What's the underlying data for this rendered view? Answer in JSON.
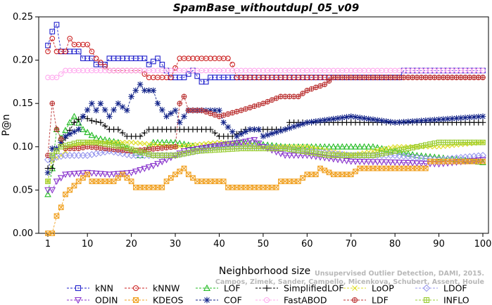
{
  "chart_data": {
    "type": "line",
    "title": "SpamBase_withoutdupl_05_v09",
    "xlabel": "Neighborhood size",
    "ylabel": "P@n",
    "xlim": [
      1,
      100
    ],
    "ylim": [
      0,
      0.25
    ],
    "x_ticks": [
      1,
      10,
      20,
      30,
      40,
      50,
      60,
      70,
      80,
      90,
      100
    ],
    "y_ticks": [
      "0.00",
      "0.05",
      "0.10",
      "0.15",
      "0.20",
      "0.25"
    ],
    "grid": false,
    "legend_position": "bottom",
    "credit": "Campos, Zimek, Sander, Campello, Micenkova, Schubert, Assent, Houle",
    "credit_line1": "Unsupervised Outlier Detection, DAMI, 2015.",
    "series": [
      {
        "name": "kNN",
        "color": "#2222cc",
        "marker": "square",
        "knots": [
          [
            1,
            0.217
          ],
          [
            2,
            0.233
          ],
          [
            3,
            0.241
          ],
          [
            4,
            0.21
          ],
          [
            6,
            0.21
          ],
          [
            8,
            0.21
          ],
          [
            9,
            0.202
          ],
          [
            11,
            0.202
          ],
          [
            12,
            0.195
          ],
          [
            14,
            0.195
          ],
          [
            15,
            0.202
          ],
          [
            23,
            0.202
          ],
          [
            24,
            0.195
          ],
          [
            26,
            0.202
          ],
          [
            28,
            0.188
          ],
          [
            29,
            0.18
          ],
          [
            32,
            0.18
          ],
          [
            34,
            0.188
          ],
          [
            36,
            0.175
          ],
          [
            37,
            0.175
          ],
          [
            38,
            0.18
          ],
          [
            81,
            0.18
          ],
          [
            82,
            0.188
          ],
          [
            100,
            0.188
          ]
        ]
      },
      {
        "name": "kNNW",
        "color": "#cc2222",
        "marker": "circle",
        "knots": [
          [
            1,
            0.21
          ],
          [
            2,
            0.225
          ],
          [
            3,
            0.21
          ],
          [
            5,
            0.21
          ],
          [
            6,
            0.225
          ],
          [
            7,
            0.218
          ],
          [
            10,
            0.218
          ],
          [
            11,
            0.21
          ],
          [
            12,
            0.202
          ],
          [
            15,
            0.188
          ],
          [
            22,
            0.188
          ],
          [
            24,
            0.18
          ],
          [
            29,
            0.18
          ],
          [
            31,
            0.202
          ],
          [
            42,
            0.202
          ],
          [
            43,
            0.195
          ],
          [
            44,
            0.18
          ],
          [
            100,
            0.18
          ]
        ]
      },
      {
        "name": "LOF",
        "color": "#22bb22",
        "marker": "triangle",
        "knots": [
          [
            1,
            0.045
          ],
          [
            2,
            0.075
          ],
          [
            3,
            0.12
          ],
          [
            4,
            0.11
          ],
          [
            6,
            0.128
          ],
          [
            7,
            0.135
          ],
          [
            9,
            0.12
          ],
          [
            12,
            0.11
          ],
          [
            17,
            0.105
          ],
          [
            22,
            0.09
          ],
          [
            25,
            0.105
          ],
          [
            30,
            0.105
          ],
          [
            35,
            0.1
          ],
          [
            45,
            0.105
          ],
          [
            55,
            0.1
          ],
          [
            65,
            0.1
          ],
          [
            75,
            0.1
          ],
          [
            85,
            0.09
          ],
          [
            95,
            0.085
          ],
          [
            100,
            0.082
          ]
        ]
      },
      {
        "name": "SimplifiedLOF",
        "color": "#000000",
        "marker": "plus",
        "knots": [
          [
            1,
            0.075
          ],
          [
            2,
            0.075
          ],
          [
            3,
            0.095
          ],
          [
            5,
            0.11
          ],
          [
            7,
            0.128
          ],
          [
            9,
            0.135
          ],
          [
            11,
            0.13
          ],
          [
            13,
            0.128
          ],
          [
            15,
            0.12
          ],
          [
            17,
            0.12
          ],
          [
            19,
            0.112
          ],
          [
            22,
            0.112
          ],
          [
            24,
            0.12
          ],
          [
            38,
            0.12
          ],
          [
            40,
            0.112
          ],
          [
            43,
            0.112
          ],
          [
            46,
            0.12
          ],
          [
            55,
            0.12
          ],
          [
            56,
            0.128
          ],
          [
            100,
            0.128
          ]
        ]
      },
      {
        "name": "LoOP",
        "color": "#dddd22",
        "marker": "x",
        "knots": [
          [
            1,
            0.06
          ],
          [
            2,
            0.085
          ],
          [
            4,
            0.09
          ],
          [
            6,
            0.1
          ],
          [
            10,
            0.105
          ],
          [
            20,
            0.105
          ],
          [
            30,
            0.1
          ],
          [
            40,
            0.105
          ],
          [
            50,
            0.1
          ],
          [
            60,
            0.1
          ],
          [
            70,
            0.09
          ],
          [
            80,
            0.1
          ],
          [
            90,
            0.1
          ],
          [
            100,
            0.105
          ]
        ]
      },
      {
        "name": "LDOF",
        "color": "#9999ee",
        "marker": "diamond",
        "knots": [
          [
            1,
            0.085
          ],
          [
            3,
            0.088
          ],
          [
            5,
            0.09
          ],
          [
            10,
            0.09
          ],
          [
            15,
            0.095
          ],
          [
            20,
            0.09
          ],
          [
            30,
            0.09
          ],
          [
            40,
            0.1
          ],
          [
            50,
            0.1
          ],
          [
            60,
            0.095
          ],
          [
            70,
            0.09
          ],
          [
            80,
            0.09
          ],
          [
            90,
            0.085
          ],
          [
            100,
            0.09
          ]
        ]
      },
      {
        "name": "ODIN",
        "color": "#8833cc",
        "marker": "triangle-down",
        "knots": [
          [
            1,
            0.05
          ],
          [
            2,
            0.05
          ],
          [
            3,
            0.06
          ],
          [
            5,
            0.068
          ],
          [
            10,
            0.07
          ],
          [
            15,
            0.068
          ],
          [
            20,
            0.07
          ],
          [
            25,
            0.078
          ],
          [
            28,
            0.085
          ],
          [
            32,
            0.095
          ],
          [
            38,
            0.1
          ],
          [
            45,
            0.105
          ],
          [
            48,
            0.108
          ],
          [
            50,
            0.1
          ],
          [
            55,
            0.09
          ],
          [
            60,
            0.09
          ],
          [
            70,
            0.083
          ],
          [
            80,
            0.082
          ],
          [
            90,
            0.08
          ],
          [
            100,
            0.085
          ]
        ]
      },
      {
        "name": "KDEOS",
        "color": "#f0a020",
        "marker": "square-x",
        "knots": [
          [
            1,
            0.0
          ],
          [
            2,
            0.0
          ],
          [
            3,
            0.02
          ],
          [
            4,
            0.03
          ],
          [
            5,
            0.045
          ],
          [
            8,
            0.06
          ],
          [
            10,
            0.068
          ],
          [
            11,
            0.06
          ],
          [
            16,
            0.06
          ],
          [
            18,
            0.068
          ],
          [
            20,
            0.06
          ],
          [
            21,
            0.053
          ],
          [
            27,
            0.053
          ],
          [
            28,
            0.06
          ],
          [
            30,
            0.068
          ],
          [
            32,
            0.075
          ],
          [
            33,
            0.068
          ],
          [
            35,
            0.06
          ],
          [
            41,
            0.06
          ],
          [
            42,
            0.053
          ],
          [
            53,
            0.053
          ],
          [
            54,
            0.06
          ],
          [
            58,
            0.06
          ],
          [
            60,
            0.068
          ],
          [
            62,
            0.068
          ],
          [
            63,
            0.075
          ],
          [
            66,
            0.068
          ],
          [
            70,
            0.068
          ],
          [
            72,
            0.075
          ],
          [
            87,
            0.075
          ],
          [
            88,
            0.083
          ],
          [
            100,
            0.083
          ]
        ]
      },
      {
        "name": "COF",
        "color": "#112288",
        "marker": "asterisk",
        "knots": [
          [
            1,
            0.07
          ],
          [
            2,
            0.098
          ],
          [
            3,
            0.098
          ],
          [
            5,
            0.112
          ],
          [
            8,
            0.12
          ],
          [
            9,
            0.135
          ],
          [
            11,
            0.15
          ],
          [
            12,
            0.142
          ],
          [
            13,
            0.15
          ],
          [
            15,
            0.135
          ],
          [
            17,
            0.15
          ],
          [
            19,
            0.142
          ],
          [
            20,
            0.158
          ],
          [
            22,
            0.172
          ],
          [
            23,
            0.165
          ],
          [
            25,
            0.165
          ],
          [
            26,
            0.15
          ],
          [
            28,
            0.135
          ],
          [
            30,
            0.142
          ],
          [
            31,
            0.128
          ],
          [
            33,
            0.142
          ],
          [
            36,
            0.142
          ],
          [
            40,
            0.142
          ],
          [
            41,
            0.128
          ],
          [
            44,
            0.112
          ],
          [
            47,
            0.12
          ],
          [
            49,
            0.12
          ],
          [
            50,
            0.112
          ],
          [
            60,
            0.128
          ],
          [
            70,
            0.135
          ],
          [
            80,
            0.128
          ],
          [
            100,
            0.135
          ]
        ]
      },
      {
        "name": "FastABOD",
        "color": "#ffaaee",
        "marker": "circle-open",
        "knots": [
          [
            1,
            0.18
          ],
          [
            3,
            0.18
          ],
          [
            5,
            0.188
          ],
          [
            10,
            0.188
          ],
          [
            20,
            0.188
          ],
          [
            40,
            0.188
          ],
          [
            60,
            0.188
          ],
          [
            80,
            0.188
          ],
          [
            100,
            0.188
          ]
        ]
      },
      {
        "name": "LDF",
        "color": "#bb3333",
        "marker": "circle-plus",
        "knots": [
          [
            1,
            0.09
          ],
          [
            2,
            0.15
          ],
          [
            3,
            0.12
          ],
          [
            5,
            0.098
          ],
          [
            8,
            0.098
          ],
          [
            10,
            0.1
          ],
          [
            20,
            0.095
          ],
          [
            30,
            0.1
          ],
          [
            31,
            0.15
          ],
          [
            32,
            0.158
          ],
          [
            33,
            0.142
          ],
          [
            36,
            0.142
          ],
          [
            40,
            0.135
          ],
          [
            45,
            0.142
          ],
          [
            50,
            0.15
          ],
          [
            54,
            0.158
          ],
          [
            58,
            0.158
          ],
          [
            60,
            0.165
          ],
          [
            64,
            0.172
          ],
          [
            66,
            0.18
          ],
          [
            100,
            0.18
          ]
        ]
      },
      {
        "name": "INFLO",
        "color": "#99cc33",
        "marker": "square-cross",
        "knots": [
          [
            1,
            0.06
          ],
          [
            2,
            0.09
          ],
          [
            4,
            0.1
          ],
          [
            8,
            0.105
          ],
          [
            12,
            0.105
          ],
          [
            18,
            0.1
          ],
          [
            25,
            0.09
          ],
          [
            30,
            0.09
          ],
          [
            35,
            0.095
          ],
          [
            45,
            0.098
          ],
          [
            55,
            0.098
          ],
          [
            65,
            0.09
          ],
          [
            75,
            0.09
          ],
          [
            85,
            0.1
          ],
          [
            90,
            0.105
          ],
          [
            100,
            0.105
          ]
        ]
      }
    ]
  }
}
